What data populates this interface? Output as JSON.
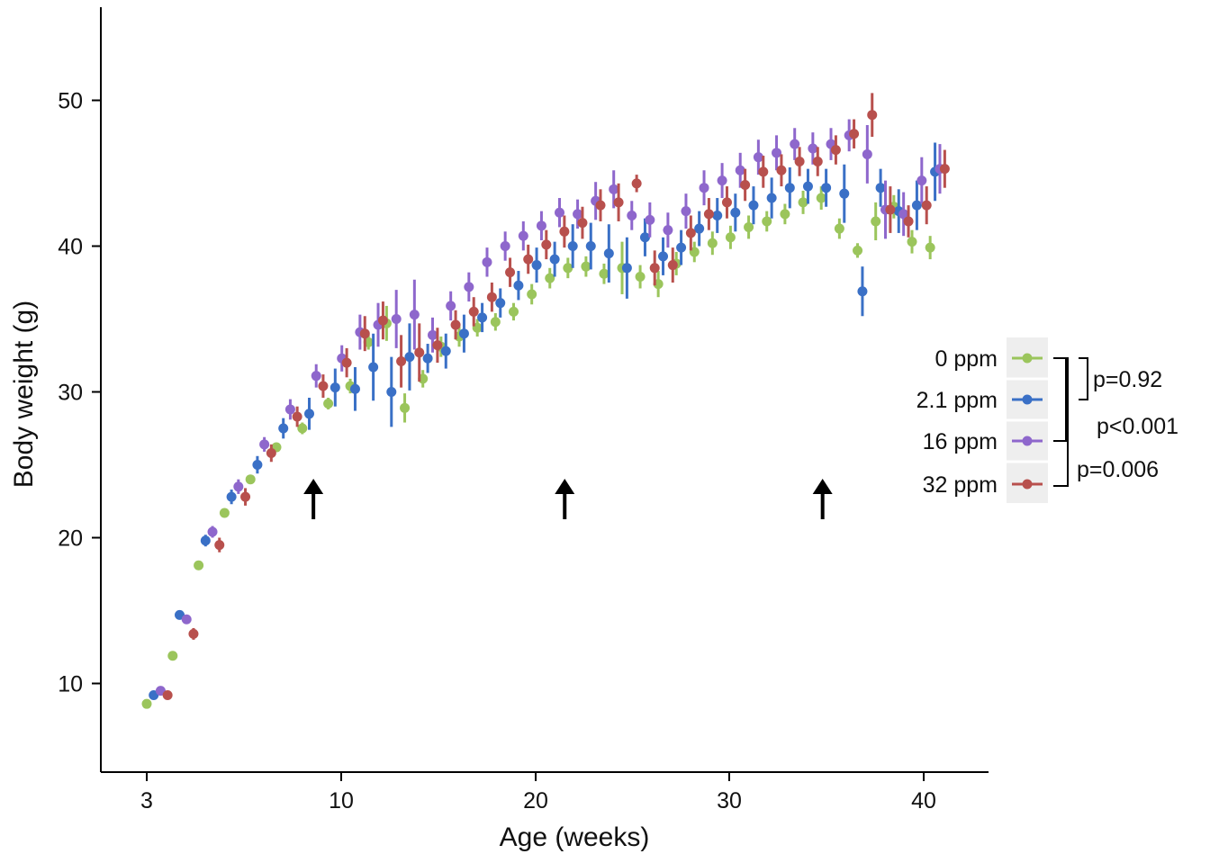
{
  "chart_data": {
    "type": "scatter",
    "xlabel": "Age (weeks)",
    "ylabel": "Body weight (g)",
    "xlim": [
      1,
      43
    ],
    "ylim": [
      4.5,
      56.5
    ],
    "x_ticks": [
      3,
      10,
      20,
      30,
      40
    ],
    "y_ticks": [
      10,
      20,
      30,
      40,
      50
    ],
    "grid": false,
    "legend_position": "right",
    "series": [
      {
        "name": "0 ppm",
        "color": "#9BC55C",
        "points": [
          [
            2.8,
            8.6,
            0.1
          ],
          [
            3.8,
            11.9,
            0.1
          ],
          [
            4.8,
            18.1,
            0.1
          ],
          [
            5.8,
            21.7,
            0.1
          ],
          [
            6.8,
            24.0,
            0.2
          ],
          [
            7.8,
            26.2,
            0.3
          ],
          [
            8.8,
            27.5,
            0.4
          ],
          [
            9.8,
            29.2,
            0.4
          ],
          [
            10.8,
            30.4,
            0.5
          ],
          [
            11.8,
            33.4,
            0.5
          ],
          [
            12.8,
            34.7,
            1.2
          ],
          [
            13.8,
            28.9,
            1.0
          ],
          [
            14.8,
            30.9,
            0.6
          ],
          [
            15.8,
            33.1,
            0.7
          ],
          [
            16.8,
            33.8,
            0.7
          ],
          [
            17.8,
            34.4,
            0.6
          ],
          [
            18.8,
            34.8,
            0.6
          ],
          [
            19.8,
            35.5,
            0.6
          ],
          [
            20.8,
            36.7,
            0.7
          ],
          [
            21.8,
            37.8,
            0.7
          ],
          [
            22.8,
            38.5,
            0.7
          ],
          [
            23.8,
            38.6,
            0.7
          ],
          [
            24.8,
            38.1,
            0.7
          ],
          [
            25.8,
            38.5,
            1.8
          ],
          [
            26.8,
            37.9,
            0.8
          ],
          [
            27.8,
            37.4,
            0.9
          ],
          [
            28.8,
            38.8,
            0.8
          ],
          [
            29.8,
            39.6,
            0.7
          ],
          [
            30.8,
            40.2,
            0.8
          ],
          [
            31.8,
            40.6,
            0.8
          ],
          [
            32.8,
            41.3,
            0.8
          ],
          [
            33.8,
            41.7,
            0.7
          ],
          [
            34.8,
            42.2,
            0.7
          ],
          [
            35.8,
            43.0,
            0.8
          ],
          [
            36.8,
            43.3,
            0.8
          ],
          [
            37.8,
            41.2,
            0.7
          ],
          [
            38.8,
            39.7,
            0.5
          ],
          [
            39.8,
            41.7,
            1.3
          ],
          [
            40.8,
            42.7,
            0.8
          ],
          [
            41.8,
            40.3,
            0.8
          ],
          [
            42.8,
            39.9,
            0.8
          ]
        ]
      },
      {
        "name": "2.1 ppm",
        "color": "#3A70C6",
        "points": [
          [
            3.0,
            9.2,
            0.1
          ],
          [
            4.0,
            14.7,
            0.3
          ],
          [
            5.0,
            19.8,
            0.4
          ],
          [
            6.0,
            22.8,
            0.5
          ],
          [
            7.0,
            25.0,
            0.6
          ],
          [
            8.0,
            27.5,
            0.7
          ],
          [
            9.0,
            28.5,
            1.1
          ],
          [
            10.0,
            30.3,
            1.3
          ],
          [
            11.0,
            30.2,
            1.5
          ],
          [
            12.0,
            31.7,
            2.3
          ],
          [
            13.0,
            30.0,
            2.4
          ],
          [
            14.0,
            32.4,
            2.3
          ],
          [
            15.0,
            32.3,
            1.0
          ],
          [
            16.0,
            32.8,
            1.2
          ],
          [
            17.0,
            34.0,
            1.3
          ],
          [
            18.0,
            35.1,
            1.0
          ],
          [
            19.0,
            36.1,
            1.0
          ],
          [
            20.0,
            37.3,
            1.0
          ],
          [
            21.0,
            38.7,
            1.2
          ],
          [
            22.0,
            39.1,
            1.2
          ],
          [
            23.0,
            40.0,
            1.5
          ],
          [
            24.0,
            40.0,
            1.6
          ],
          [
            25.0,
            39.5,
            2.0
          ],
          [
            26.0,
            38.5,
            2.1
          ],
          [
            27.0,
            40.6,
            1.3
          ],
          [
            28.0,
            39.3,
            1.3
          ],
          [
            29.0,
            39.9,
            1.2
          ],
          [
            30.0,
            41.2,
            1.2
          ],
          [
            31.0,
            42.1,
            1.2
          ],
          [
            32.0,
            42.3,
            1.3
          ],
          [
            33.0,
            42.8,
            1.3
          ],
          [
            34.0,
            43.3,
            1.4
          ],
          [
            35.0,
            44.0,
            1.4
          ],
          [
            36.0,
            44.1,
            1.2
          ],
          [
            37.0,
            44.0,
            1.3
          ],
          [
            38.0,
            43.6,
            2.0
          ],
          [
            39.0,
            36.9,
            1.7
          ],
          [
            40.0,
            44.0,
            1.3
          ],
          [
            41.0,
            42.4,
            1.5
          ],
          [
            42.0,
            42.8,
            1.7
          ],
          [
            43.0,
            45.1,
            2.0
          ]
        ]
      },
      {
        "name": "16 ppm",
        "color": "#8E67CC",
        "points": [
          [
            3.2,
            9.5,
            0.1
          ],
          [
            4.2,
            14.4,
            0.3
          ],
          [
            5.2,
            20.4,
            0.4
          ],
          [
            6.2,
            23.5,
            0.5
          ],
          [
            7.2,
            26.4,
            0.5
          ],
          [
            8.2,
            28.8,
            0.7
          ],
          [
            9.2,
            31.1,
            0.8
          ],
          [
            10.2,
            32.3,
            0.9
          ],
          [
            11.2,
            34.1,
            1.2
          ],
          [
            12.2,
            34.6,
            1.5
          ],
          [
            13.2,
            35.0,
            2.0
          ],
          [
            14.2,
            35.3,
            2.4
          ],
          [
            15.2,
            33.9,
            1.2
          ],
          [
            16.2,
            35.9,
            1.0
          ],
          [
            17.2,
            37.2,
            1.0
          ],
          [
            18.2,
            38.9,
            1.0
          ],
          [
            19.2,
            40.0,
            1.0
          ],
          [
            20.2,
            40.7,
            1.0
          ],
          [
            21.2,
            41.4,
            1.0
          ],
          [
            22.2,
            42.3,
            1.0
          ],
          [
            23.2,
            42.2,
            1.0
          ],
          [
            24.2,
            43.1,
            1.3
          ],
          [
            25.2,
            43.9,
            1.3
          ],
          [
            26.2,
            42.1,
            1.0
          ],
          [
            27.2,
            41.8,
            1.2
          ],
          [
            28.2,
            41.1,
            1.2
          ],
          [
            29.2,
            42.4,
            1.2
          ],
          [
            30.2,
            44.0,
            1.2
          ],
          [
            31.2,
            44.5,
            1.2
          ],
          [
            32.2,
            45.2,
            1.2
          ],
          [
            33.2,
            46.1,
            1.2
          ],
          [
            34.2,
            46.4,
            1.2
          ],
          [
            35.2,
            47.0,
            1.1
          ],
          [
            36.2,
            46.7,
            1.1
          ],
          [
            37.2,
            47.0,
            1.1
          ],
          [
            38.2,
            47.6,
            1.1
          ],
          [
            39.2,
            46.3,
            2.0
          ],
          [
            40.2,
            42.5,
            2.0
          ],
          [
            41.2,
            42.2,
            1.5
          ],
          [
            42.2,
            44.5,
            1.6
          ],
          [
            43.2,
            45.3,
            1.7
          ]
        ]
      },
      {
        "name": "32 ppm",
        "color": "#B8504D",
        "points": [
          [
            3.4,
            9.2,
            0.1
          ],
          [
            4.4,
            13.4,
            0.4
          ],
          [
            5.4,
            19.5,
            0.5
          ],
          [
            6.4,
            22.8,
            0.6
          ],
          [
            7.4,
            25.8,
            0.6
          ],
          [
            8.4,
            28.3,
            0.7
          ],
          [
            9.4,
            30.4,
            0.8
          ],
          [
            10.4,
            32.0,
            1.0
          ],
          [
            11.4,
            34.0,
            1.2
          ],
          [
            12.4,
            34.9,
            1.3
          ],
          [
            13.4,
            32.1,
            1.8
          ],
          [
            14.4,
            32.7,
            2.0
          ],
          [
            15.4,
            33.2,
            1.2
          ],
          [
            16.4,
            34.6,
            1.0
          ],
          [
            17.4,
            35.5,
            1.0
          ],
          [
            18.4,
            36.5,
            1.0
          ],
          [
            19.4,
            38.2,
            1.0
          ],
          [
            20.4,
            39.1,
            1.0
          ],
          [
            21.4,
            40.1,
            1.0
          ],
          [
            22.4,
            41.0,
            1.1
          ],
          [
            23.4,
            41.6,
            1.1
          ],
          [
            24.4,
            42.8,
            1.1
          ],
          [
            25.4,
            43.0,
            1.3
          ],
          [
            26.4,
            44.3,
            0.6
          ],
          [
            27.4,
            38.5,
            1.2
          ],
          [
            28.4,
            38.7,
            1.2
          ],
          [
            29.4,
            40.9,
            1.2
          ],
          [
            30.4,
            42.2,
            1.1
          ],
          [
            31.4,
            43.0,
            1.1
          ],
          [
            32.4,
            44.2,
            1.1
          ],
          [
            33.4,
            45.1,
            1.1
          ],
          [
            34.4,
            45.2,
            1.1
          ],
          [
            35.4,
            45.8,
            1.0
          ],
          [
            36.4,
            45.8,
            1.0
          ],
          [
            37.4,
            46.6,
            1.0
          ],
          [
            38.4,
            47.7,
            1.0
          ],
          [
            39.4,
            49.0,
            1.5
          ],
          [
            40.4,
            42.5,
            1.6
          ],
          [
            41.4,
            41.7,
            1.1
          ],
          [
            42.4,
            42.8,
            1.3
          ],
          [
            43.4,
            45.3,
            1.3
          ]
        ]
      }
    ],
    "arrows_at_x": [
      9,
      21.5,
      34.8
    ],
    "statistics": [
      {
        "label": "p=0.92",
        "comparison": [
          "0 ppm",
          "2.1 ppm"
        ]
      },
      {
        "label": "p<0.001",
        "comparison": [
          "0 ppm",
          "16 ppm"
        ]
      },
      {
        "label": "p=0.006",
        "comparison": [
          "0 ppm",
          "32 ppm"
        ]
      }
    ]
  }
}
